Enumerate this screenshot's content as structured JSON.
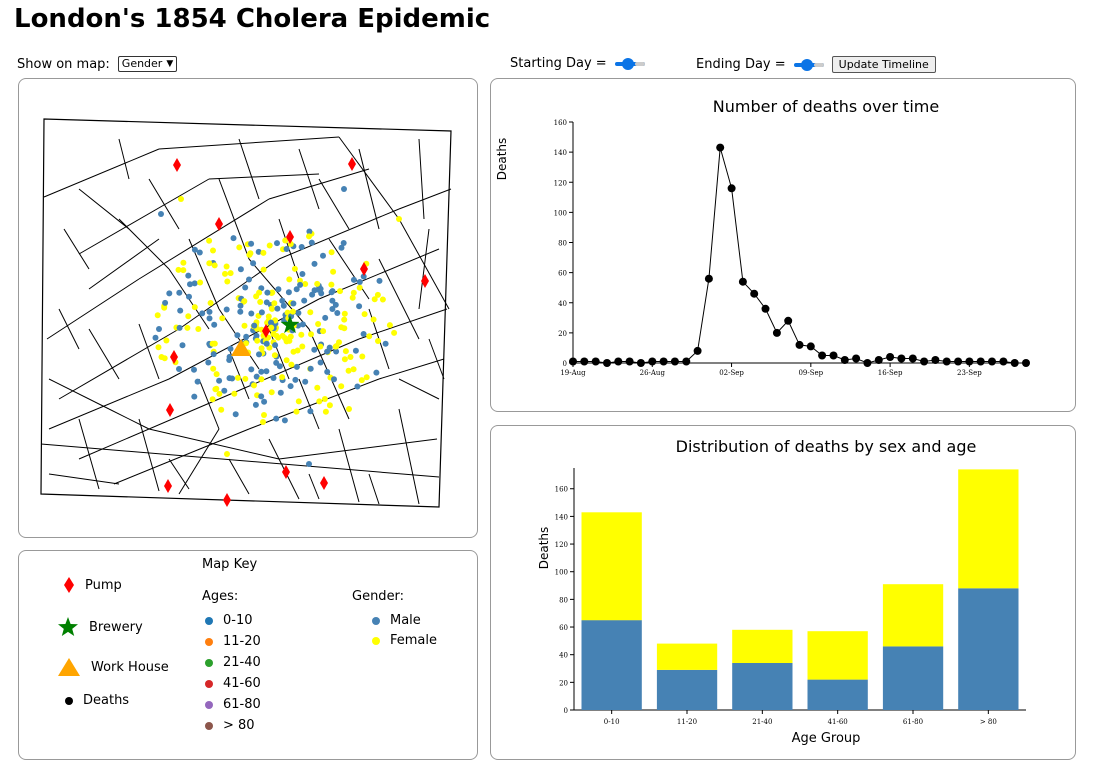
{
  "page": {
    "title": "London's 1854 Cholera Epidemic"
  },
  "controls": {
    "show_label": "Show on map:",
    "show_value": "Gender",
    "start_label": "Starting Day =",
    "end_label": "Ending Day =",
    "update_button": "Update Timeline"
  },
  "colors": {
    "male": "#4682b4",
    "female": "#ffff00",
    "pump": "#ff0000",
    "brewery": "#008000",
    "workhouse": "#ffa500",
    "deaths": "#000000"
  },
  "key": {
    "title": "Map Key",
    "pump": "Pump",
    "brewery": "Brewery",
    "workhouse": "Work House",
    "deaths": "Deaths",
    "ages_title": "Ages:",
    "ages": [
      {
        "label": "0-10",
        "color": "#1f77b4"
      },
      {
        "label": "11-20",
        "color": "#ff7f0e"
      },
      {
        "label": "21-40",
        "color": "#2ca02c"
      },
      {
        "label": "41-60",
        "color": "#d62728"
      },
      {
        "label": "61-80",
        "color": "#9467bd"
      },
      {
        "label": "> 80",
        "color": "#8c564b"
      }
    ],
    "gender_title": "Gender:",
    "genders": [
      {
        "label": "Male",
        "color": "#4682b4"
      },
      {
        "label": "Female",
        "color": "#ffff00"
      }
    ]
  },
  "chart_data": [
    {
      "type": "line",
      "title": "Number of deaths over time",
      "xlabel": "",
      "ylabel": "Deaths",
      "ylim": [
        0,
        160
      ],
      "y_ticks": [
        0,
        20,
        40,
        60,
        80,
        100,
        120,
        140,
        160
      ],
      "x_ticks": [
        "19-Aug",
        "26-Aug",
        "02-Sep",
        "09-Sep",
        "16-Sep",
        "23-Sep"
      ],
      "x_tick_day_index": [
        0,
        7,
        14,
        21,
        28,
        35
      ],
      "values": [
        1,
        1,
        1,
        0,
        1,
        1,
        0,
        1,
        1,
        1,
        1,
        8,
        56,
        143,
        116,
        54,
        46,
        36,
        20,
        28,
        12,
        11,
        5,
        5,
        2,
        3,
        0,
        2,
        4,
        3,
        3,
        1,
        2,
        1,
        1,
        1,
        1,
        1,
        1,
        0,
        0
      ]
    },
    {
      "type": "bar",
      "title": "Distribution of deaths by sex and age",
      "xlabel": "Age Group",
      "ylabel": "Deaths",
      "ylim": [
        0,
        175
      ],
      "y_ticks": [
        0,
        20,
        40,
        60,
        80,
        100,
        120,
        140,
        160
      ],
      "categories": [
        "0-10",
        "11-20",
        "21-40",
        "41-60",
        "61-80",
        "> 80"
      ],
      "series": [
        {
          "name": "Male",
          "color": "#4682b4",
          "values": [
            65,
            29,
            34,
            22,
            46,
            88
          ]
        },
        {
          "name": "Female",
          "color": "#ffff00",
          "values": [
            78,
            19,
            24,
            35,
            45,
            86
          ]
        }
      ]
    }
  ]
}
